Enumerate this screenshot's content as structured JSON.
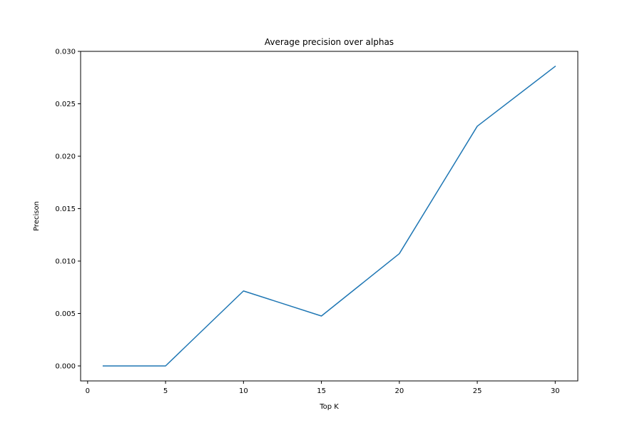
{
  "chart_data": {
    "type": "line",
    "title": "Average precision over alphas",
    "xlabel": "Top K",
    "ylabel": "Precison",
    "xlim": [
      -0.45,
      31.45
    ],
    "ylim": [
      -0.00143,
      0.03
    ],
    "xticks": [
      0,
      5,
      10,
      15,
      20,
      25,
      30
    ],
    "yticks": [
      0.0,
      0.005,
      0.01,
      0.015,
      0.02,
      0.025,
      0.03
    ],
    "xtick_labels": [
      "0",
      "5",
      "10",
      "15",
      "20",
      "25",
      "30"
    ],
    "ytick_labels": [
      "0.000",
      "0.005",
      "0.010",
      "0.015",
      "0.020",
      "0.025",
      "0.030"
    ],
    "grid": false,
    "series": [
      {
        "color": "#1f77b4",
        "x": [
          1,
          5,
          10,
          15,
          20,
          25,
          30
        ],
        "y": [
          0.0,
          0.0,
          0.00715,
          0.00476,
          0.01071,
          0.02286,
          0.02857
        ]
      }
    ]
  }
}
